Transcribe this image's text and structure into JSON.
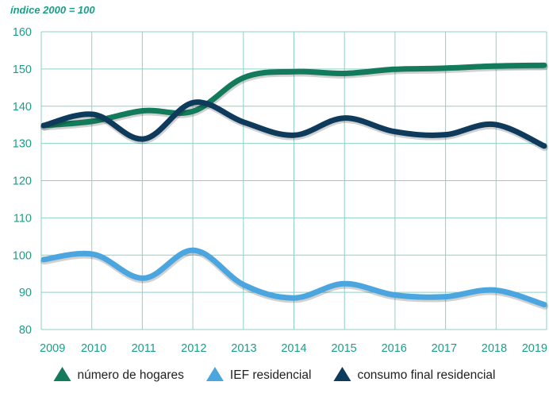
{
  "chart_data": {
    "type": "line",
    "subtitle": "índice 2000 = 100",
    "x": [
      2009,
      2010,
      2011,
      2012,
      2013,
      2014,
      2015,
      2016,
      2017,
      2018,
      2019
    ],
    "x_tick_labels": [
      "2009",
      "2010",
      "2011",
      "2012",
      "2013",
      "2014",
      "2015",
      "2016",
      "2017",
      "2018",
      "2019"
    ],
    "y_tick_labels": [
      "160",
      "150",
      "140",
      "130",
      "120",
      "110",
      "100",
      "90",
      "80"
    ],
    "ylim": [
      80,
      160
    ],
    "y_ticks": [
      160,
      150,
      140,
      130,
      120,
      110,
      100,
      90,
      80
    ],
    "grid": true,
    "legend_position": "bottom",
    "series": [
      {
        "name": "número de hogares",
        "color": "#137a5c",
        "values": [
          134.8,
          136.0,
          138.8,
          138.7,
          147.7,
          149.3,
          148.8,
          149.9,
          150.2,
          150.8,
          151.0
        ]
      },
      {
        "name": "IEF residencial",
        "color": "#4ba6df",
        "values": [
          98.8,
          100.2,
          93.8,
          101.3,
          92.0,
          88.5,
          92.3,
          89.3,
          88.8,
          90.6,
          86.7
        ]
      },
      {
        "name": "consumo final residencial",
        "color": "#0e3a5c",
        "values": [
          134.8,
          137.8,
          131.2,
          141.0,
          135.7,
          132.2,
          136.8,
          133.2,
          132.3,
          135.1,
          129.3
        ]
      }
    ]
  }
}
